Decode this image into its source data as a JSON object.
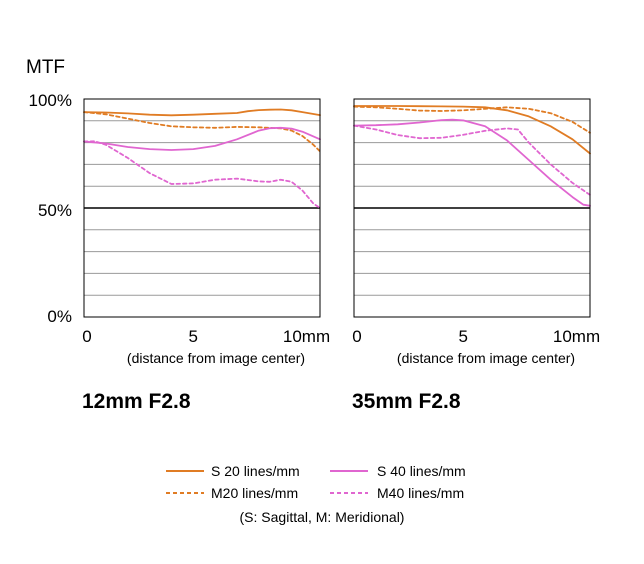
{
  "y_axis_label": "MTF",
  "y_tick_labels": [
    "100%",
    "50%",
    "0%"
  ],
  "colors": {
    "s20": "#E07C24",
    "m20": "#E07C24",
    "s40": "#E066D0",
    "m40": "#E066D0"
  },
  "chart_data": [
    {
      "type": "line",
      "title": "12mm F2.8",
      "xlabel": "(distance from image center)",
      "ylabel": "MTF",
      "x_tick_labels": [
        "0",
        "5",
        "10mm"
      ],
      "xlim": [
        0,
        10.8
      ],
      "ylim": [
        0,
        100
      ],
      "grid": true,
      "series": [
        {
          "name": "S 20 lines/mm",
          "style": "solid",
          "x": [
            0,
            1,
            2,
            3,
            4,
            5,
            6,
            7,
            7.5,
            8,
            8.5,
            9,
            9.5,
            10,
            10.8
          ],
          "y": [
            94,
            93.8,
            93.4,
            92.8,
            92.5,
            92.8,
            93.2,
            93.6,
            94.4,
            94.9,
            95.1,
            95.2,
            94.8,
            94.0,
            92.6
          ]
        },
        {
          "name": "M20 lines/mm",
          "style": "dashed",
          "x": [
            0,
            1,
            2,
            3,
            4,
            5,
            6,
            7,
            8,
            9,
            9.5,
            10,
            10.5,
            10.8
          ],
          "y": [
            94,
            93,
            91,
            89,
            87.5,
            87,
            86.8,
            87.2,
            87,
            86.5,
            85.5,
            83,
            79,
            76
          ]
        },
        {
          "name": "S 40 lines/mm",
          "style": "solid",
          "x": [
            0,
            1,
            2,
            3,
            4,
            5,
            6,
            7,
            8,
            8.5,
            9,
            9.5,
            10,
            10.8
          ],
          "y": [
            80.5,
            79.6,
            78,
            77,
            76.6,
            77,
            78.5,
            81.5,
            85.5,
            86.6,
            86.8,
            86.4,
            85,
            81.5
          ]
        },
        {
          "name": "M40 lines/mm",
          "style": "dashed",
          "x": [
            0,
            0.5,
            1,
            2,
            3,
            4,
            5,
            6,
            7,
            8,
            8.5,
            9,
            9.5,
            10,
            10.5,
            10.8
          ],
          "y": [
            80.5,
            80.6,
            79,
            73,
            66,
            61,
            61.3,
            63,
            63.5,
            62.2,
            62,
            63,
            62,
            58,
            52,
            50
          ]
        }
      ]
    },
    {
      "type": "line",
      "title": "35mm F2.8",
      "xlabel": "(distance from image center)",
      "ylabel": "MTF",
      "x_tick_labels": [
        "0",
        "5",
        "10mm"
      ],
      "xlim": [
        0,
        10.8
      ],
      "ylim": [
        0,
        100
      ],
      "grid": true,
      "series": [
        {
          "name": "S 20 lines/mm",
          "style": "solid",
          "x": [
            0,
            1,
            2,
            3,
            4,
            5,
            6,
            7,
            8,
            9,
            10,
            10.8
          ],
          "y": [
            96.8,
            96.8,
            96.8,
            96.7,
            96.6,
            96.5,
            96.2,
            94.8,
            92,
            87.5,
            81.5,
            75
          ]
        },
        {
          "name": "M20 lines/mm",
          "style": "dashed",
          "x": [
            0,
            1,
            2,
            3,
            4,
            5,
            6,
            7,
            8,
            9,
            10,
            10.8
          ],
          "y": [
            96.5,
            96.2,
            95.5,
            94.7,
            94.5,
            94.8,
            95.5,
            96.2,
            95.5,
            93.5,
            89.5,
            84.5
          ]
        },
        {
          "name": "S 40 lines/mm",
          "style": "solid",
          "x": [
            0,
            1,
            2,
            3,
            4,
            4.5,
            5,
            6,
            7,
            8,
            9,
            10,
            10.5,
            10.8
          ],
          "y": [
            87.8,
            88,
            88.4,
            89.2,
            90.3,
            90.5,
            90.2,
            87.5,
            81,
            72,
            63,
            55,
            51.5,
            51
          ]
        },
        {
          "name": "M40 lines/mm",
          "style": "dashed",
          "x": [
            0,
            1,
            2,
            3,
            4,
            5,
            6,
            7,
            7.5,
            8,
            9,
            10,
            10.8
          ],
          "y": [
            87.8,
            86,
            83.5,
            82,
            82.2,
            83.6,
            85.4,
            86.5,
            86,
            80,
            70,
            61.5,
            56
          ]
        }
      ]
    }
  ],
  "legend": {
    "items": [
      {
        "key": "s20",
        "label": "S 20 lines/mm",
        "style": "solid"
      },
      {
        "key": "s40",
        "label": "S 40 lines/mm",
        "style": "solid"
      },
      {
        "key": "m20",
        "label": "M20 lines/mm",
        "style": "dashed"
      },
      {
        "key": "m40",
        "label": "M40 lines/mm",
        "style": "dashed"
      }
    ],
    "note": "(S: Sagittal, M: Meridional)"
  }
}
